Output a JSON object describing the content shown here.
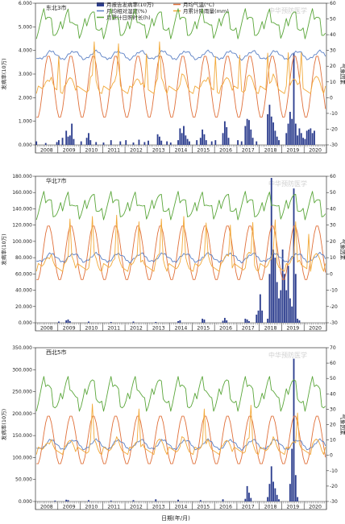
{
  "legend": {
    "items": [
      {
        "key": "cases",
        "label": "月报告发病率(10万)",
        "color": "#2e3f8f",
        "kind": "bar"
      },
      {
        "key": "temp",
        "label": "月均气温(°C)",
        "color": "#e0703a",
        "kind": "line"
      },
      {
        "key": "hum",
        "label": "月均相对湿度(%)",
        "color": "#5a7fc4",
        "kind": "line"
      },
      {
        "key": "rain",
        "label": "月累计降雨量(mm)",
        "color": "#f2a93a",
        "kind": "line"
      },
      {
        "key": "sun",
        "label": "月累计日照时长(h)",
        "color": "#5aa63a",
        "kind": "line"
      }
    ]
  },
  "watermark": "中华预防医学",
  "x_axis_label": "日期(年/月)",
  "chart_data": [
    {
      "type": "bar+line",
      "panel_label": "东北3市",
      "ylabel_left": "发病率(10万)",
      "ylabel_right": "气象因素",
      "ylim_left": [
        0,
        6000
      ],
      "yticks_left": [
        "0.000",
        "1.000",
        "2.000",
        "3.000",
        "4.000",
        "5.000",
        "6.000"
      ],
      "ylim_right": [
        -30,
        60
      ],
      "yticks_right": [
        "-30",
        "-20",
        "-10",
        "0",
        "10",
        "20",
        "30",
        "40",
        "50",
        "60"
      ],
      "x_years": [
        "2008",
        "2009",
        "2010",
        "2011",
        "2012",
        "2013",
        "2014",
        "2015",
        "2016",
        "2017",
        "2018",
        "2019",
        "2020"
      ],
      "temp": {
        "mean": 7,
        "amp": 20
      },
      "hum": {
        "mean": 27,
        "amp": 2.5
      },
      "rain": {
        "mean": 5,
        "amp": 8,
        "spikes": [
          12,
          31,
          44,
          59,
          66,
          96,
          109,
          124,
          135,
          142
        ]
      },
      "sun": {
        "mean": 47,
        "amp": 6
      },
      "bars": [
        [
          0,
          150
        ],
        [
          5,
          80
        ],
        [
          11,
          120
        ],
        [
          12,
          200
        ],
        [
          14,
          300
        ],
        [
          16,
          600
        ],
        [
          17,
          350
        ],
        [
          18,
          400
        ],
        [
          19,
          900
        ],
        [
          20,
          250
        ],
        [
          24,
          150
        ],
        [
          27,
          300
        ],
        [
          28,
          500
        ],
        [
          29,
          200
        ],
        [
          32,
          120
        ],
        [
          36,
          100
        ],
        [
          40,
          200
        ],
        [
          45,
          150
        ],
        [
          48,
          200
        ],
        [
          52,
          100
        ],
        [
          55,
          220
        ],
        [
          58,
          120
        ],
        [
          60,
          180
        ],
        [
          65,
          450
        ],
        [
          66,
          350
        ],
        [
          67,
          180
        ],
        [
          70,
          150
        ],
        [
          72,
          100
        ],
        [
          76,
          200
        ],
        [
          77,
          700
        ],
        [
          78,
          500
        ],
        [
          79,
          800
        ],
        [
          80,
          400
        ],
        [
          81,
          250
        ],
        [
          82,
          150
        ],
        [
          86,
          200
        ],
        [
          88,
          300
        ],
        [
          89,
          650
        ],
        [
          90,
          450
        ],
        [
          91,
          200
        ],
        [
          94,
          150
        ],
        [
          96,
          200
        ],
        [
          100,
          500
        ],
        [
          101,
          1000
        ],
        [
          102,
          750
        ],
        [
          103,
          300
        ],
        [
          108,
          200
        ],
        [
          110,
          150
        ],
        [
          112,
          800
        ],
        [
          113,
          1100
        ],
        [
          114,
          1050
        ],
        [
          115,
          650
        ],
        [
          116,
          300
        ],
        [
          118,
          150
        ],
        [
          124,
          1300
        ],
        [
          125,
          1700
        ],
        [
          126,
          1200
        ],
        [
          127,
          950
        ],
        [
          128,
          600
        ],
        [
          129,
          350
        ],
        [
          130,
          200
        ],
        [
          134,
          500
        ],
        [
          135,
          900
        ],
        [
          136,
          1400
        ],
        [
          137,
          1100
        ],
        [
          138,
          3900
        ],
        [
          139,
          900
        ],
        [
          140,
          400
        ],
        [
          141,
          700
        ],
        [
          142,
          500
        ],
        [
          143,
          300
        ],
        [
          144,
          250
        ],
        [
          145,
          600
        ],
        [
          146,
          650
        ],
        [
          147,
          700
        ],
        [
          148,
          500
        ],
        [
          149,
          600
        ]
      ]
    },
    {
      "type": "bar+line",
      "panel_label": "华北7市",
      "ylabel_left": "发病率(10万)",
      "ylabel_right": "气象因素",
      "ylim_left": [
        0,
        180000
      ],
      "yticks_left": [
        "0.000",
        "20.000",
        "40.000",
        "60.000",
        "80.000",
        "100.000",
        "120.000",
        "140.000",
        "160.000",
        "180.000"
      ],
      "ylim_right": [
        -30,
        60
      ],
      "yticks_right": [
        "-30",
        "-20",
        "-10",
        "0",
        "10",
        "20",
        "30",
        "40",
        "50",
        "60"
      ],
      "x_years": [
        "2008",
        "2009",
        "2010",
        "2011",
        "2012",
        "2013",
        "2014",
        "2015",
        "2016",
        "2017",
        "2018",
        "2019",
        "2020"
      ],
      "temp": {
        "mean": 13,
        "amp": 17
      },
      "hum": {
        "mean": 10,
        "amp": 2.5
      },
      "rain": {
        "mean": 4,
        "amp": 8,
        "spikes": [
          18,
          30,
          43,
          55,
          67,
          79,
          91,
          104,
          116,
          128,
          139,
          146
        ]
      },
      "sun": {
        "mean": 42,
        "amp": 5
      },
      "bars": [
        [
          12,
          1500
        ],
        [
          16,
          3000
        ],
        [
          17,
          4000
        ],
        [
          18,
          2000
        ],
        [
          28,
          1500
        ],
        [
          40,
          1000
        ],
        [
          52,
          1500
        ],
        [
          64,
          1000
        ],
        [
          76,
          2000
        ],
        [
          77,
          3000
        ],
        [
          89,
          5000
        ],
        [
          90,
          4000
        ],
        [
          100,
          2500
        ],
        [
          101,
          6000
        ],
        [
          102,
          3000
        ],
        [
          112,
          5000
        ],
        [
          113,
          4000
        ],
        [
          114,
          2000
        ],
        [
          118,
          10000
        ],
        [
          119,
          15000
        ],
        [
          120,
          35000
        ],
        [
          121,
          15000
        ],
        [
          124,
          5000
        ],
        [
          125,
          60000
        ],
        [
          126,
          178000
        ],
        [
          127,
          90000
        ],
        [
          128,
          80000
        ],
        [
          129,
          50000
        ],
        [
          130,
          30000
        ],
        [
          131,
          40000
        ],
        [
          132,
          90000
        ],
        [
          133,
          60000
        ],
        [
          134,
          40000
        ],
        [
          135,
          70000
        ],
        [
          136,
          30000
        ],
        [
          137,
          20000
        ],
        [
          138,
          165000
        ],
        [
          139,
          60000
        ],
        [
          140,
          5000
        ],
        [
          141,
          3000
        ]
      ]
    },
    {
      "type": "bar+line",
      "panel_label": "西北5市",
      "ylabel_left": "发病率(10万)",
      "ylabel_right": "气象因素",
      "ylim_left": [
        0,
        350000
      ],
      "yticks_left": [
        "0.000",
        "50.000",
        "100.000",
        "150.000",
        "200.000",
        "250.000",
        "300.000",
        "350.000"
      ],
      "ylim_right": [
        -30,
        70
      ],
      "yticks_right": [
        "-30",
        "-20",
        "-10",
        "0",
        "10",
        "20",
        "30",
        "40",
        "50",
        "60",
        "70"
      ],
      "x_years": [
        "2008",
        "2009",
        "2010",
        "2011",
        "2012",
        "2013",
        "2014",
        "2015",
        "2016",
        "2017",
        "2018",
        "2019",
        "2020"
      ],
      "temp": {
        "mean": 10,
        "amp": 16
      },
      "hum": {
        "mean": 7,
        "amp": 3
      },
      "rain": {
        "mean": 3,
        "amp": 7,
        "spikes": [
          30,
          55,
          90,
          115,
          140
        ]
      },
      "sun": {
        "mean": 40,
        "amp": 8
      },
      "bars": [
        [
          10,
          2000
        ],
        [
          16,
          4000
        ],
        [
          17,
          3000
        ],
        [
          28,
          3000
        ],
        [
          40,
          2000
        ],
        [
          52,
          3000
        ],
        [
          64,
          5000
        ],
        [
          76,
          4000
        ],
        [
          88,
          3000
        ],
        [
          100,
          5000
        ],
        [
          112,
          6000
        ],
        [
          113,
          35000
        ],
        [
          114,
          20000
        ],
        [
          115,
          8000
        ],
        [
          124,
          10000
        ],
        [
          125,
          40000
        ],
        [
          126,
          80000
        ],
        [
          127,
          45000
        ],
        [
          128,
          30000
        ],
        [
          129,
          15000
        ],
        [
          130,
          5000
        ],
        [
          136,
          40000
        ],
        [
          137,
          120000
        ],
        [
          138,
          325000
        ],
        [
          139,
          60000
        ],
        [
          140,
          10000
        ]
      ]
    }
  ]
}
